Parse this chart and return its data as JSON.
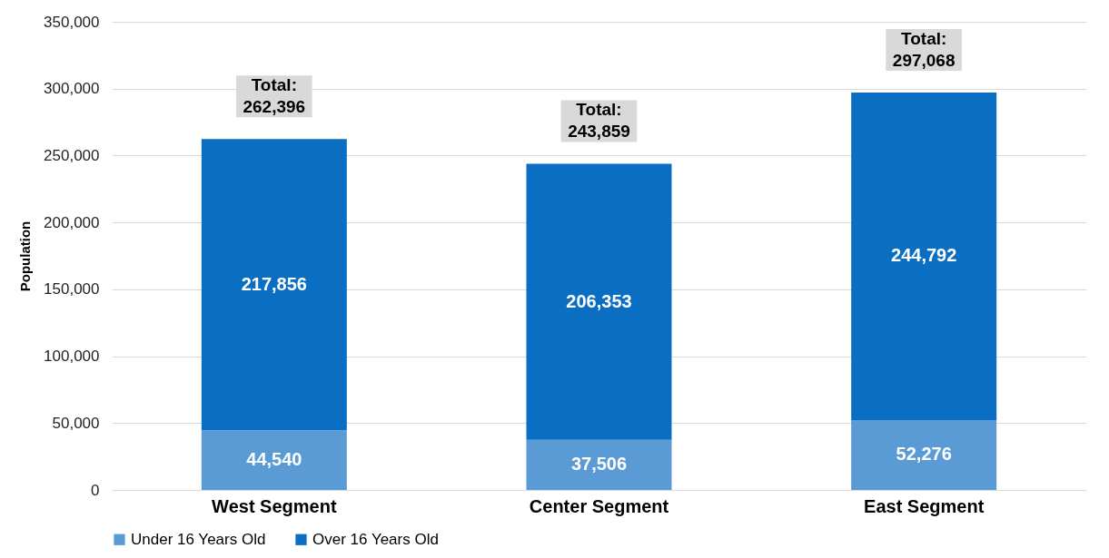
{
  "chart_data": {
    "type": "bar",
    "stacked": true,
    "ylabel": "Population",
    "categories": [
      "West Segment",
      "Center Segment",
      "East Segment"
    ],
    "series": [
      {
        "name": "Under 16 Years Old",
        "color": "#5b9bd5",
        "values": [
          44540,
          37506,
          52276
        ],
        "value_labels": [
          "44,540",
          "37,506",
          "52,276"
        ]
      },
      {
        "name": "Over 16 Years Old",
        "color": "#0a6fc2",
        "values": [
          217856,
          206353,
          244792
        ],
        "value_labels": [
          "217,856",
          "206,353",
          "244,792"
        ]
      }
    ],
    "totals": [
      "Total:\n262,396",
      "Total:\n243,859",
      "Total:\n297,068"
    ],
    "ylim": [
      0,
      350000
    ],
    "yticks": [
      {
        "value": 0,
        "label": "0"
      },
      {
        "value": 50000,
        "label": "50,000"
      },
      {
        "value": 100000,
        "label": "100,000"
      },
      {
        "value": 150000,
        "label": "150,000"
      },
      {
        "value": 200000,
        "label": "200,000"
      },
      {
        "value": 250000,
        "label": "250,000"
      },
      {
        "value": 300000,
        "label": "300,000"
      },
      {
        "value": 350000,
        "label": "350,000"
      }
    ],
    "grid": "y",
    "legend": "bottom"
  }
}
